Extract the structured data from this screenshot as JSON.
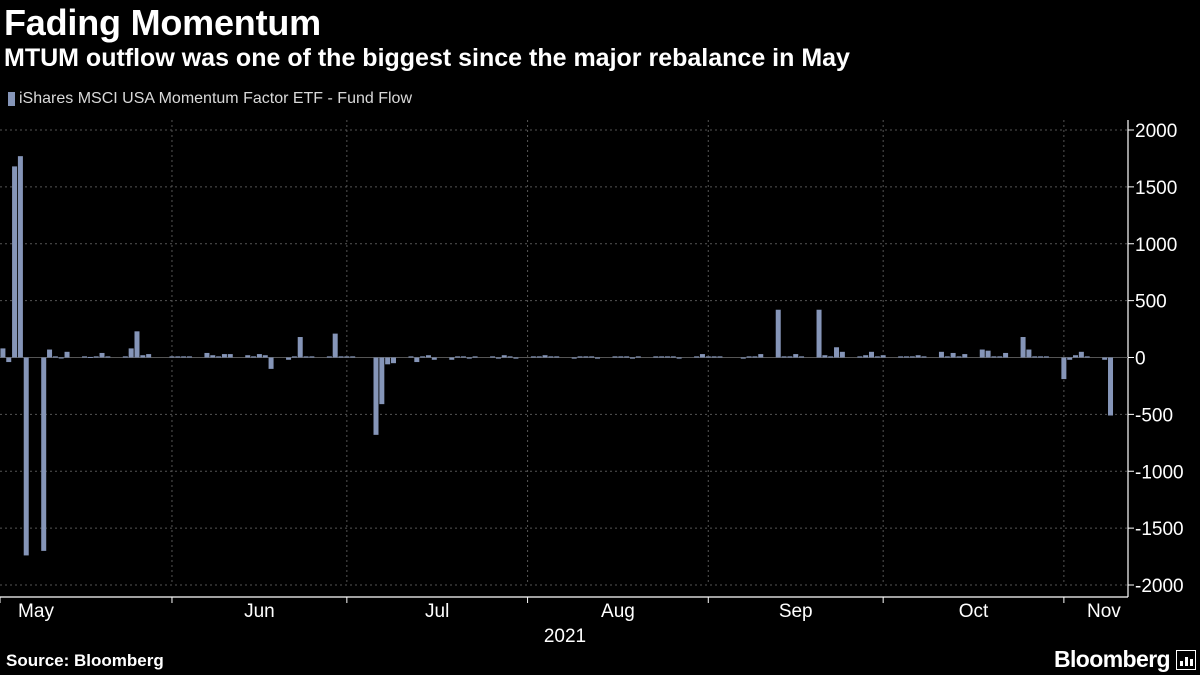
{
  "title": "Fading Momentum",
  "subtitle": "MTUM outflow was one of the biggest since the major rebalance in May",
  "source": "Source: Bloomberg",
  "brand": "Bloomberg",
  "colors": {
    "background": "#000000",
    "bar": "#8595b8",
    "grid": "#555555",
    "text": "#ffffff"
  },
  "chart_data": {
    "type": "bar",
    "series": [
      {
        "name": "iShares MSCI USA Momentum Factor ETF - Fund Flow",
        "values": [
          {
            "date": "2021-05-03",
            "value": 80
          },
          {
            "date": "2021-05-04",
            "value": -40
          },
          {
            "date": "2021-05-05",
            "value": 1680
          },
          {
            "date": "2021-05-06",
            "value": 1770
          },
          {
            "date": "2021-05-07",
            "value": -1740
          },
          {
            "date": "2021-05-10",
            "value": -1700
          },
          {
            "date": "2021-05-11",
            "value": 70
          },
          {
            "date": "2021-05-12",
            "value": 10
          },
          {
            "date": "2021-05-13",
            "value": 0
          },
          {
            "date": "2021-05-14",
            "value": 50
          },
          {
            "date": "2021-05-17",
            "value": 10
          },
          {
            "date": "2021-05-18",
            "value": 5
          },
          {
            "date": "2021-05-19",
            "value": 10
          },
          {
            "date": "2021-05-20",
            "value": 40
          },
          {
            "date": "2021-05-21",
            "value": 10
          },
          {
            "date": "2021-05-24",
            "value": 10
          },
          {
            "date": "2021-05-25",
            "value": 80
          },
          {
            "date": "2021-05-26",
            "value": 230
          },
          {
            "date": "2021-05-27",
            "value": 20
          },
          {
            "date": "2021-05-28",
            "value": 30
          },
          {
            "date": "2021-06-01",
            "value": 10
          },
          {
            "date": "2021-06-02",
            "value": 10
          },
          {
            "date": "2021-06-03",
            "value": 10
          },
          {
            "date": "2021-06-04",
            "value": 10
          },
          {
            "date": "2021-06-07",
            "value": 40
          },
          {
            "date": "2021-06-08",
            "value": 20
          },
          {
            "date": "2021-06-09",
            "value": 10
          },
          {
            "date": "2021-06-10",
            "value": 30
          },
          {
            "date": "2021-06-11",
            "value": 30
          },
          {
            "date": "2021-06-14",
            "value": 20
          },
          {
            "date": "2021-06-15",
            "value": 10
          },
          {
            "date": "2021-06-16",
            "value": 30
          },
          {
            "date": "2021-06-17",
            "value": 20
          },
          {
            "date": "2021-06-18",
            "value": -100
          },
          {
            "date": "2021-06-21",
            "value": -20
          },
          {
            "date": "2021-06-22",
            "value": 10
          },
          {
            "date": "2021-06-23",
            "value": 180
          },
          {
            "date": "2021-06-24",
            "value": 10
          },
          {
            "date": "2021-06-25",
            "value": 10
          },
          {
            "date": "2021-06-28",
            "value": 10
          },
          {
            "date": "2021-06-29",
            "value": 210
          },
          {
            "date": "2021-06-30",
            "value": 10
          },
          {
            "date": "2021-07-01",
            "value": 10
          },
          {
            "date": "2021-07-02",
            "value": 10
          },
          {
            "date": "2021-07-06",
            "value": -680
          },
          {
            "date": "2021-07-07",
            "value": -410
          },
          {
            "date": "2021-07-08",
            "value": -60
          },
          {
            "date": "2021-07-09",
            "value": -50
          },
          {
            "date": "2021-07-12",
            "value": 10
          },
          {
            "date": "2021-07-13",
            "value": -40
          },
          {
            "date": "2021-07-14",
            "value": 10
          },
          {
            "date": "2021-07-15",
            "value": 20
          },
          {
            "date": "2021-07-16",
            "value": -20
          },
          {
            "date": "2021-07-19",
            "value": -20
          },
          {
            "date": "2021-07-20",
            "value": 10
          },
          {
            "date": "2021-07-21",
            "value": 10
          },
          {
            "date": "2021-07-22",
            "value": -10
          },
          {
            "date": "2021-07-23",
            "value": 10
          },
          {
            "date": "2021-07-26",
            "value": 10
          },
          {
            "date": "2021-07-27",
            "value": -10
          },
          {
            "date": "2021-07-28",
            "value": 20
          },
          {
            "date": "2021-07-29",
            "value": 10
          },
          {
            "date": "2021-07-30",
            "value": -10
          },
          {
            "date": "2021-08-02",
            "value": 10
          },
          {
            "date": "2021-08-03",
            "value": 10
          },
          {
            "date": "2021-08-04",
            "value": 20
          },
          {
            "date": "2021-08-05",
            "value": 10
          },
          {
            "date": "2021-08-06",
            "value": 10
          },
          {
            "date": "2021-08-09",
            "value": -10
          },
          {
            "date": "2021-08-10",
            "value": 10
          },
          {
            "date": "2021-08-11",
            "value": 10
          },
          {
            "date": "2021-08-12",
            "value": 10
          },
          {
            "date": "2021-08-13",
            "value": -10
          },
          {
            "date": "2021-08-16",
            "value": 10
          },
          {
            "date": "2021-08-17",
            "value": 10
          },
          {
            "date": "2021-08-18",
            "value": 10
          },
          {
            "date": "2021-08-19",
            "value": -10
          },
          {
            "date": "2021-08-20",
            "value": 10
          },
          {
            "date": "2021-08-23",
            "value": 10
          },
          {
            "date": "2021-08-24",
            "value": 10
          },
          {
            "date": "2021-08-25",
            "value": 10
          },
          {
            "date": "2021-08-26",
            "value": 10
          },
          {
            "date": "2021-08-27",
            "value": -10
          },
          {
            "date": "2021-08-30",
            "value": 10
          },
          {
            "date": "2021-08-31",
            "value": 30
          },
          {
            "date": "2021-09-01",
            "value": 10
          },
          {
            "date": "2021-09-02",
            "value": 10
          },
          {
            "date": "2021-09-03",
            "value": 10
          },
          {
            "date": "2021-09-07",
            "value": -10
          },
          {
            "date": "2021-09-08",
            "value": 10
          },
          {
            "date": "2021-09-09",
            "value": 10
          },
          {
            "date": "2021-09-10",
            "value": 30
          },
          {
            "date": "2021-09-13",
            "value": 420
          },
          {
            "date": "2021-09-14",
            "value": 10
          },
          {
            "date": "2021-09-15",
            "value": 10
          },
          {
            "date": "2021-09-16",
            "value": 30
          },
          {
            "date": "2021-09-17",
            "value": 10
          },
          {
            "date": "2021-09-20",
            "value": 420
          },
          {
            "date": "2021-09-21",
            "value": 20
          },
          {
            "date": "2021-09-22",
            "value": 10
          },
          {
            "date": "2021-09-23",
            "value": 90
          },
          {
            "date": "2021-09-24",
            "value": 50
          },
          {
            "date": "2021-09-27",
            "value": 10
          },
          {
            "date": "2021-09-28",
            "value": 20
          },
          {
            "date": "2021-09-29",
            "value": 50
          },
          {
            "date": "2021-09-30",
            "value": 10
          },
          {
            "date": "2021-10-01",
            "value": 20
          },
          {
            "date": "2021-10-04",
            "value": 10
          },
          {
            "date": "2021-10-05",
            "value": 10
          },
          {
            "date": "2021-10-06",
            "value": 10
          },
          {
            "date": "2021-10-07",
            "value": 20
          },
          {
            "date": "2021-10-08",
            "value": 10
          },
          {
            "date": "2021-10-11",
            "value": 50
          },
          {
            "date": "2021-10-12",
            "value": 10
          },
          {
            "date": "2021-10-13",
            "value": 40
          },
          {
            "date": "2021-10-14",
            "value": 10
          },
          {
            "date": "2021-10-15",
            "value": 30
          },
          {
            "date": "2021-10-18",
            "value": 70
          },
          {
            "date": "2021-10-19",
            "value": 60
          },
          {
            "date": "2021-10-20",
            "value": 10
          },
          {
            "date": "2021-10-21",
            "value": 10
          },
          {
            "date": "2021-10-22",
            "value": 40
          },
          {
            "date": "2021-10-25",
            "value": 180
          },
          {
            "date": "2021-10-26",
            "value": 70
          },
          {
            "date": "2021-10-27",
            "value": 10
          },
          {
            "date": "2021-10-28",
            "value": 10
          },
          {
            "date": "2021-10-29",
            "value": 10
          },
          {
            "date": "2021-11-01",
            "value": -190
          },
          {
            "date": "2021-11-02",
            "value": -20
          },
          {
            "date": "2021-11-03",
            "value": 20
          },
          {
            "date": "2021-11-04",
            "value": 50
          },
          {
            "date": "2021-11-05",
            "value": 10
          },
          {
            "date": "2021-11-08",
            "value": -20
          },
          {
            "date": "2021-11-09",
            "value": -510
          }
        ]
      }
    ],
    "x_start": "2021-05-03",
    "x_end": "2021-11-12",
    "x_ticks": [
      {
        "date": "2021-05-01",
        "label": "May"
      },
      {
        "date": "2021-06-01",
        "label": "Jun"
      },
      {
        "date": "2021-07-01",
        "label": "Jul"
      },
      {
        "date": "2021-08-01",
        "label": "Aug"
      },
      {
        "date": "2021-09-01",
        "label": "Sep"
      },
      {
        "date": "2021-10-01",
        "label": "Oct"
      },
      {
        "date": "2021-11-01",
        "label": "Nov"
      }
    ],
    "x_year_label": "2021",
    "ylim": [
      -2000,
      2000
    ],
    "y_ticks": [
      2000,
      1500,
      1000,
      500,
      0,
      -500,
      -1000,
      -1500,
      -2000
    ],
    "grid": true,
    "y_axis_side": "right",
    "legend_position": "top-left"
  }
}
